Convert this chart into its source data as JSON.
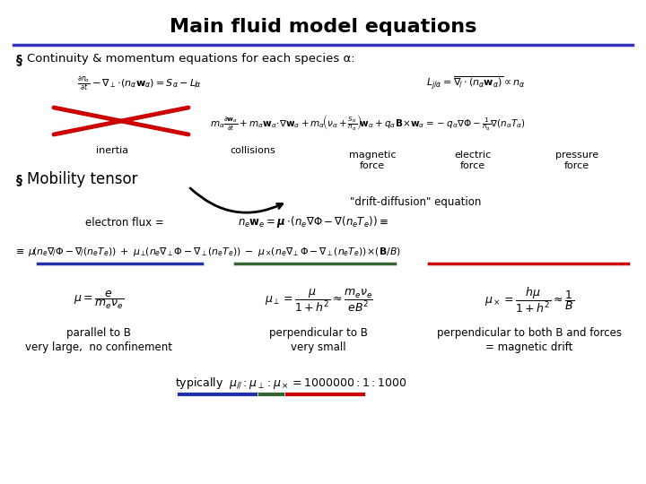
{
  "title": "Main fluid model equations",
  "title_fontsize": 16,
  "title_fontweight": "bold",
  "bg_color": "#ffffff",
  "divider_color": "#3333bb",
  "bullet_char": "§",
  "section1_text": "Continuity & momentum equations for each species α:",
  "section2_text": "Mobility tensor",
  "red_color": "#cc0000",
  "blue_color": "#2233aa",
  "green_color": "#336633",
  "label_inertia": "inertia",
  "label_collisions": "collisions",
  "label_magnetic": "magnetic\nforce",
  "label_electric": "electric\nforce",
  "label_pressure": "pressure\nforce",
  "drift_diffusion": "\"drift-diffusion\" equation",
  "electron_flux_label": "electron flux = ",
  "parallel_label1": "parallel to B",
  "parallel_label2": "very large,  no confinement",
  "perp1_label1": "perpendicular to B",
  "perp1_label2": "very small",
  "perp2_label1": "perpendicular to both B and forces",
  "perp2_label2": "= magnetic drift",
  "typically_label": "typically  "
}
